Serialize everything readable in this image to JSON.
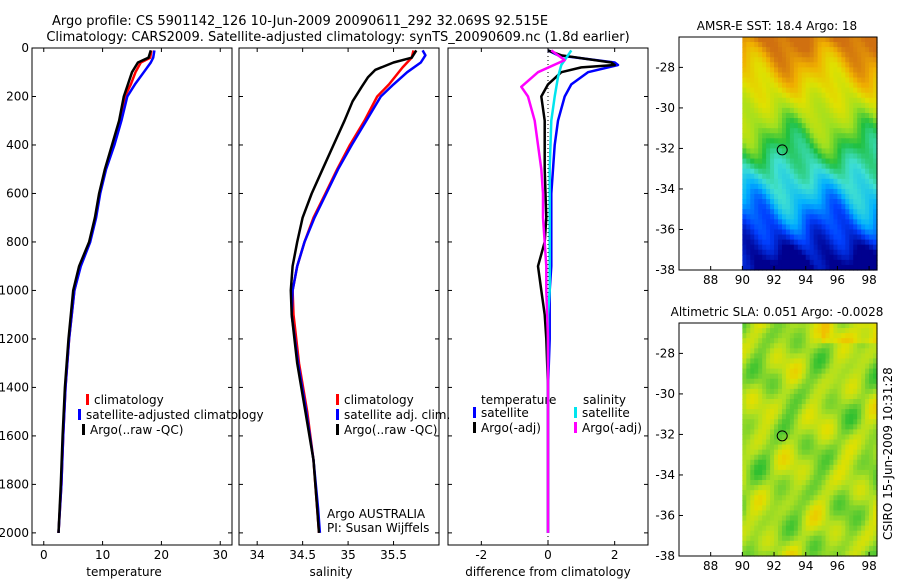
{
  "header": {
    "line1": "Argo profile: CS 5901142_126 10-Jun-2009 20090611_292 32.069S 92.515E",
    "line2": "Climatology: CARS2009. Satellite-adjusted climatology: synTS_20090609.nc (1.8d earlier)"
  },
  "credit": "CSIRO 15-Jun-2009 10:31:28",
  "colors": {
    "climatology": "#ff0000",
    "satellite": "#0000ff",
    "argo": "#000000",
    "satellite_salinity": "#00e5ee",
    "argo_salinity": "#ff00ff",
    "zero_line": "#000000"
  },
  "chart_data": [
    {
      "id": "temperature",
      "type": "line",
      "xlabel": "temperature",
      "xlim": [
        -2,
        32
      ],
      "ylim": [
        0,
        2050
      ],
      "xticks": [
        0,
        10,
        20,
        30
      ],
      "yticks": [
        0,
        200,
        400,
        600,
        800,
        1000,
        1200,
        1400,
        1600,
        1800,
        2000
      ],
      "legend": [
        "climatology",
        "satellite-adjusted climatology",
        "Argo(..raw -QC)"
      ],
      "legend_location": "lower-right",
      "series": [
        {
          "name": "climatology",
          "color": "#ff0000",
          "points": [
            [
              18.3,
              10
            ],
            [
              18.1,
              40
            ],
            [
              16.5,
              60
            ],
            [
              15.6,
              100
            ],
            [
              14.8,
              150
            ],
            [
              13.8,
              200
            ],
            [
              13.0,
              300
            ],
            [
              11.8,
              400
            ],
            [
              10.5,
              500
            ],
            [
              9.5,
              600
            ],
            [
              8.8,
              700
            ],
            [
              7.8,
              800
            ],
            [
              6.2,
              900
            ],
            [
              5.2,
              1000
            ],
            [
              4.3,
              1200
            ],
            [
              3.7,
              1400
            ],
            [
              3.3,
              1600
            ],
            [
              3.0,
              1800
            ],
            [
              2.5,
              2000
            ]
          ]
        },
        {
          "name": "satellite-adjusted climatology",
          "color": "#0000ff",
          "points": [
            [
              18.8,
              10
            ],
            [
              18.6,
              40
            ],
            [
              18.2,
              60
            ],
            [
              17.0,
              100
            ],
            [
              15.5,
              150
            ],
            [
              14.2,
              200
            ],
            [
              13.2,
              300
            ],
            [
              12.0,
              400
            ],
            [
              10.6,
              500
            ],
            [
              9.6,
              600
            ],
            [
              8.9,
              700
            ],
            [
              7.9,
              800
            ],
            [
              6.3,
              900
            ],
            [
              5.2,
              1000
            ],
            [
              4.3,
              1200
            ],
            [
              3.7,
              1400
            ],
            [
              3.3,
              1600
            ],
            [
              3.0,
              1800
            ],
            [
              2.5,
              2000
            ]
          ]
        },
        {
          "name": "Argo(..raw -QC)",
          "color": "#000000",
          "points": [
            [
              18.2,
              10
            ],
            [
              17.8,
              40
            ],
            [
              16.0,
              60
            ],
            [
              15.0,
              100
            ],
            [
              14.3,
              150
            ],
            [
              13.6,
              200
            ],
            [
              12.8,
              300
            ],
            [
              11.6,
              400
            ],
            [
              10.4,
              500
            ],
            [
              9.4,
              600
            ],
            [
              8.7,
              700
            ],
            [
              7.7,
              800
            ],
            [
              6.0,
              900
            ],
            [
              5.0,
              1000
            ],
            [
              4.2,
              1200
            ],
            [
              3.6,
              1400
            ],
            [
              3.2,
              1600
            ],
            [
              2.9,
              1800
            ],
            [
              2.5,
              2000
            ]
          ]
        }
      ]
    },
    {
      "id": "salinity",
      "type": "line",
      "xlabel": "salinity",
      "xlim": [
        33.8,
        36.0
      ],
      "ylim": [
        0,
        2050
      ],
      "xticks": [
        34,
        34.5,
        35,
        35.5
      ],
      "yticks": [
        0,
        200,
        400,
        600,
        800,
        1000,
        1200,
        1400,
        1600,
        1800,
        2000
      ],
      "legend": [
        "climatology",
        "satellite adj. clim.",
        "Argo(..raw -QC)"
      ],
      "legend_location": "lower-right",
      "annotation_line1": "Argo AUSTRALIA",
      "annotation_line2": "PI: Susan Wijffels",
      "series": [
        {
          "name": "climatology",
          "color": "#ff0000",
          "points": [
            [
              35.72,
              10
            ],
            [
              35.7,
              40
            ],
            [
              35.6,
              80
            ],
            [
              35.45,
              150
            ],
            [
              35.32,
              200
            ],
            [
              35.18,
              300
            ],
            [
              35.02,
              400
            ],
            [
              34.88,
              500
            ],
            [
              34.75,
              600
            ],
            [
              34.62,
              700
            ],
            [
              34.52,
              800
            ],
            [
              34.44,
              900
            ],
            [
              34.39,
              1000
            ],
            [
              34.4,
              1100
            ],
            [
              34.46,
              1300
            ],
            [
              34.55,
              1500
            ],
            [
              34.62,
              1700
            ],
            [
              34.66,
              1900
            ],
            [
              34.68,
              2000
            ]
          ]
        },
        {
          "name": "satellite adj. clim.",
          "color": "#0000ff",
          "points": [
            [
              35.82,
              10
            ],
            [
              35.85,
              30
            ],
            [
              35.8,
              60
            ],
            [
              35.65,
              100
            ],
            [
              35.5,
              150
            ],
            [
              35.36,
              200
            ],
            [
              35.2,
              300
            ],
            [
              35.04,
              400
            ],
            [
              34.89,
              500
            ],
            [
              34.76,
              600
            ],
            [
              34.63,
              700
            ],
            [
              34.52,
              800
            ],
            [
              34.44,
              900
            ],
            [
              34.39,
              1000
            ],
            [
              34.38,
              1100
            ],
            [
              34.45,
              1300
            ],
            [
              34.54,
              1500
            ],
            [
              34.62,
              1700
            ],
            [
              34.67,
              1900
            ],
            [
              34.69,
              2000
            ]
          ]
        },
        {
          "name": "Argo(..raw -QC)",
          "color": "#000000",
          "points": [
            [
              35.75,
              10
            ],
            [
              35.7,
              40
            ],
            [
              35.5,
              60
            ],
            [
              35.3,
              90
            ],
            [
              35.22,
              120
            ],
            [
              35.15,
              160
            ],
            [
              35.05,
              220
            ],
            [
              34.96,
              300
            ],
            [
              34.84,
              400
            ],
            [
              34.72,
              500
            ],
            [
              34.6,
              600
            ],
            [
              34.5,
              700
            ],
            [
              34.44,
              800
            ],
            [
              34.39,
              900
            ],
            [
              34.37,
              1000
            ],
            [
              34.38,
              1100
            ],
            [
              34.44,
              1300
            ],
            [
              34.53,
              1500
            ],
            [
              34.62,
              1700
            ],
            [
              34.66,
              1900
            ],
            [
              34.68,
              2000
            ]
          ]
        }
      ]
    },
    {
      "id": "difference",
      "type": "line",
      "xlabel": "difference from climatology",
      "xlim": [
        -3,
        3
      ],
      "ylim": [
        0,
        2050
      ],
      "xticks": [
        -2,
        0,
        2
      ],
      "yticks": [
        0,
        200,
        400,
        600,
        800,
        1000,
        1200,
        1400,
        1600,
        1800,
        2000
      ],
      "legend_temperature_title": "temperature",
      "legend_salinity_title": "salinity",
      "legend": [
        "satellite",
        "Argo(-adj)",
        "satellite",
        "Argo(-adj)"
      ],
      "legend_location": "lower-right",
      "series": [
        {
          "name": "temperature satellite",
          "color": "#0000ff",
          "points": [
            [
              0,
              10
            ],
            [
              0.3,
              30
            ],
            [
              2.0,
              60
            ],
            [
              2.1,
              70
            ],
            [
              1.2,
              100
            ],
            [
              0.7,
              150
            ],
            [
              0.5,
              200
            ],
            [
              0.3,
              300
            ],
            [
              0.2,
              400
            ],
            [
              0.1,
              600
            ],
            [
              0.1,
              700
            ],
            [
              0.1,
              800
            ],
            [
              0.1,
              900
            ],
            [
              0.05,
              1000
            ],
            [
              0.05,
              1200
            ],
            [
              0,
              1400
            ],
            [
              0,
              1600
            ],
            [
              0,
              1800
            ],
            [
              0,
              2000
            ]
          ]
        },
        {
          "name": "temperature Argo(-adj)",
          "color": "#000000",
          "points": [
            [
              0,
              10
            ],
            [
              0.4,
              30
            ],
            [
              1.9,
              60
            ],
            [
              2.0,
              70
            ],
            [
              1.0,
              80
            ],
            [
              0.4,
              100
            ],
            [
              0.0,
              150
            ],
            [
              -0.2,
              200
            ],
            [
              -0.1,
              300
            ],
            [
              -0.1,
              500
            ],
            [
              -0.05,
              700
            ],
            [
              -0.1,
              800
            ],
            [
              -0.3,
              900
            ],
            [
              -0.2,
              1000
            ],
            [
              -0.1,
              1100
            ],
            [
              -0.05,
              1200
            ],
            [
              0,
              1400
            ],
            [
              0,
              1600
            ],
            [
              0,
              2000
            ]
          ]
        },
        {
          "name": "salinity satellite",
          "color": "#00e5ee",
          "points": [
            [
              0.7,
              10
            ],
            [
              0.6,
              30
            ],
            [
              0.4,
              70
            ],
            [
              0.3,
              120
            ],
            [
              0.2,
              200
            ],
            [
              0.1,
              300
            ],
            [
              0.05,
              500
            ],
            [
              0.05,
              700
            ],
            [
              0.05,
              900
            ],
            [
              0.05,
              1000
            ],
            [
              0,
              1100
            ],
            [
              0,
              1300
            ],
            [
              0,
              1500
            ],
            [
              0,
              1800
            ],
            [
              0,
              2000
            ]
          ]
        },
        {
          "name": "salinity Argo(-adj)",
          "color": "#ff00ff",
          "points": [
            [
              0.1,
              10
            ],
            [
              0.5,
              50
            ],
            [
              -0.3,
              100
            ],
            [
              -0.8,
              160
            ],
            [
              -0.6,
              200
            ],
            [
              -0.4,
              300
            ],
            [
              -0.3,
              400
            ],
            [
              -0.2,
              500
            ],
            [
              -0.15,
              600
            ],
            [
              -0.15,
              700
            ],
            [
              -0.1,
              800
            ],
            [
              -0.05,
              900
            ],
            [
              -0.05,
              1000
            ],
            [
              0,
              1200
            ],
            [
              0,
              1400
            ],
            [
              0,
              1600
            ],
            [
              0,
              1800
            ],
            [
              0,
              2000
            ]
          ]
        }
      ]
    },
    {
      "id": "sst_map",
      "type": "heatmap",
      "title": "AMSR-E SST: 18.4 Argo: 18",
      "xlim": [
        86,
        98.5
      ],
      "ylim": [
        -38,
        -26.5
      ],
      "xticks": [
        88,
        90,
        92,
        94,
        96,
        98
      ],
      "yticks": [
        -28,
        -30,
        -32,
        -34,
        -36,
        -38
      ],
      "data_region_lon": [
        90,
        98.5
      ],
      "argo_marker": {
        "lon": 92.515,
        "lat": -32.069
      },
      "colormap": [
        "#00008f",
        "#0040ff",
        "#00b0ff",
        "#40e0d0",
        "#20c040",
        "#a0e020",
        "#e0e000",
        "#f0b000",
        "#d07010"
      ],
      "description_rows_north_to_south": [
        "warm orange",
        "orange-yellow",
        "green",
        "cyan",
        "light blue",
        "dark blue"
      ]
    },
    {
      "id": "sla_map",
      "type": "heatmap",
      "title": "Altimetric SLA: 0.051 Argo: -0.0028",
      "xlim": [
        86,
        98.5
      ],
      "ylim": [
        -38,
        -26.5
      ],
      "xticks": [
        88,
        90,
        92,
        94,
        96,
        98
      ],
      "yticks": [
        -28,
        -30,
        -32,
        -34,
        -36,
        -38
      ],
      "data_region_lon": [
        90,
        98.5
      ],
      "argo_marker": {
        "lon": 92.515,
        "lat": -32.069
      },
      "colormap": [
        "#30c030",
        "#70d030",
        "#b0e020",
        "#e0e000",
        "#f0c000"
      ]
    }
  ]
}
